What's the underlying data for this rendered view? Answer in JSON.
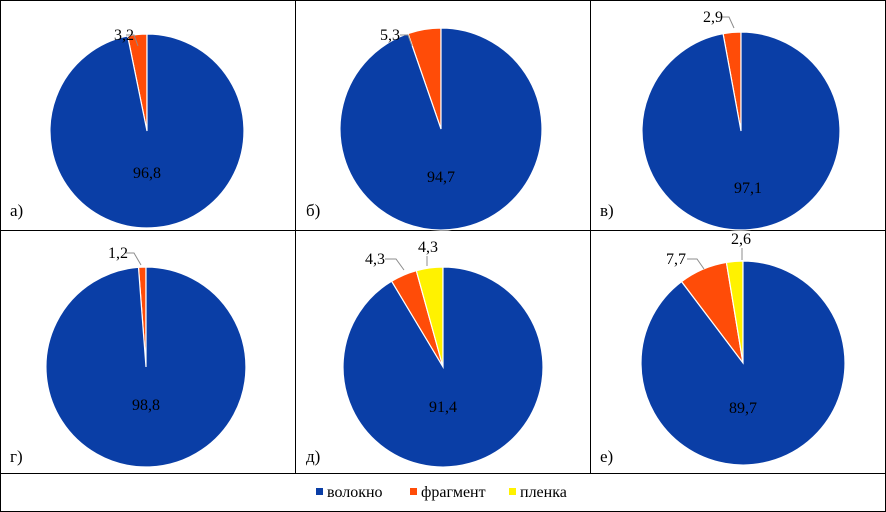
{
  "colors": {
    "series": [
      "#0A3EA6",
      "#FF4C08",
      "#FFF200"
    ],
    "border": "#000000",
    "leader": "#8c8c8c"
  },
  "legend": [
    "волокно",
    "фрагмент",
    "пленка"
  ],
  "chart_data": [
    {
      "type": "pie",
      "panel_label": "а)",
      "series": [
        {
          "name": "волокно",
          "value": 96.8,
          "label": "96,8"
        },
        {
          "name": "фрагмент",
          "value": 3.2,
          "label": "3,2"
        }
      ]
    },
    {
      "type": "pie",
      "panel_label": "б)",
      "series": [
        {
          "name": "волокно",
          "value": 94.7,
          "label": "94,7"
        },
        {
          "name": "фрагмент",
          "value": 5.3,
          "label": "5,3"
        }
      ]
    },
    {
      "type": "pie",
      "panel_label": "в)",
      "series": [
        {
          "name": "волокно",
          "value": 97.1,
          "label": "97,1"
        },
        {
          "name": "фрагмент",
          "value": 2.9,
          "label": "2,9"
        }
      ]
    },
    {
      "type": "pie",
      "panel_label": "г)",
      "series": [
        {
          "name": "волокно",
          "value": 98.8,
          "label": "98,8"
        },
        {
          "name": "фрагмент",
          "value": 1.2,
          "label": "1,2"
        }
      ]
    },
    {
      "type": "pie",
      "panel_label": "д)",
      "series": [
        {
          "name": "волокно",
          "value": 91.4,
          "label": "91,4"
        },
        {
          "name": "фрагмент",
          "value": 4.3,
          "label": "4,3"
        },
        {
          "name": "пленка",
          "value": 4.3,
          "label": "4,3"
        }
      ]
    },
    {
      "type": "pie",
      "panel_label": "е)",
      "series": [
        {
          "name": "волокно",
          "value": 89.7,
          "label": "89,7"
        },
        {
          "name": "фрагмент",
          "value": 7.7,
          "label": "7,7"
        },
        {
          "name": "пленка",
          "value": 2.6,
          "label": "2,6"
        }
      ]
    }
  ]
}
